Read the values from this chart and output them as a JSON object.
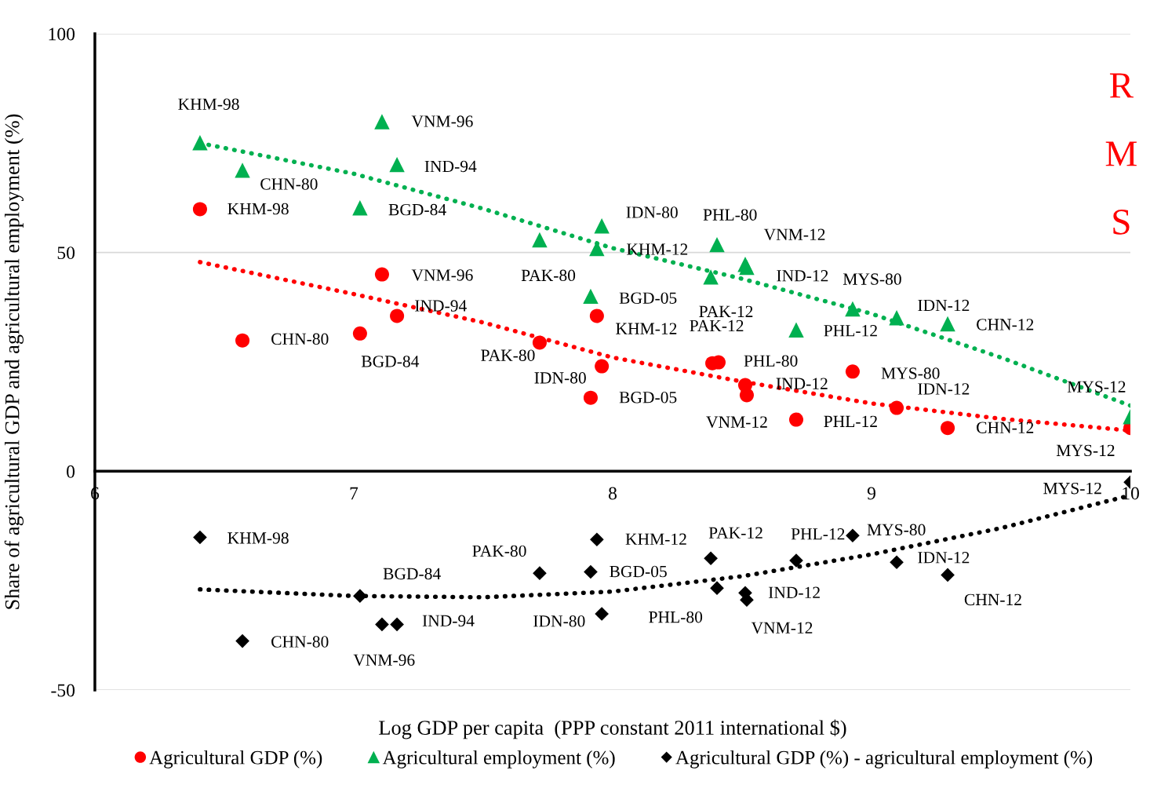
{
  "chart_data": {
    "type": "scatter",
    "xlabel": "Log GDP per capita  (PPP constant 2011 international $)",
    "ylabel": "Share of agricultural GDP and agricultural employment (%)",
    "xlim": [
      6,
      10
    ],
    "xticks": [
      6,
      7,
      8,
      9,
      10
    ],
    "ylim": [
      -50,
      100
    ],
    "yticks": [
      -50,
      0,
      50,
      100
    ],
    "grid": "y",
    "legend": "bottom",
    "series": [
      {
        "name": "Agricultural GDP (%)",
        "marker": "circle",
        "color": "#ff0000",
        "x": [
          6.406,
          6.57,
          7.109,
          7.167,
          7.024,
          7.718,
          7.958,
          7.939,
          7.915,
          8.409,
          8.385,
          8.518,
          8.512,
          8.927,
          9.097,
          9.294,
          8.709,
          10.0
        ],
        "values": [
          59.9,
          29.9,
          45.0,
          35.5,
          31.5,
          29.4,
          24.0,
          35.5,
          16.8,
          24.9,
          24.7,
          17.4,
          19.7,
          22.8,
          14.5,
          9.9,
          11.8,
          9.9
        ]
      },
      {
        "name": "Agricultural employment (%)",
        "marker": "triangle",
        "color": "#00b050",
        "x": [
          6.406,
          6.57,
          7.109,
          7.167,
          7.024,
          7.718,
          7.958,
          7.939,
          7.915,
          8.403,
          8.512,
          8.518,
          8.379,
          8.927,
          9.097,
          9.294,
          8.709,
          10.0
        ],
        "values": [
          75.1,
          68.8,
          79.9,
          70.1,
          60.2,
          52.9,
          56.1,
          50.9,
          40.0,
          51.8,
          47.3,
          46.6,
          44.4,
          37.1,
          35.1,
          33.7,
          32.3,
          12.5
        ]
      },
      {
        "name": "Agricultural GDP (%) - agricultural employment (%)",
        "marker": "diamond",
        "color": "#000000",
        "x": [
          6.406,
          6.57,
          7.109,
          7.167,
          7.024,
          7.718,
          7.958,
          7.939,
          7.915,
          8.403,
          8.379,
          8.518,
          8.512,
          8.927,
          9.097,
          9.294,
          8.709,
          10.0
        ],
        "values": [
          -15.1,
          -38.8,
          -35.0,
          -35.0,
          -28.5,
          -23.3,
          -32.6,
          -15.6,
          -23.0,
          -26.7,
          -19.9,
          -29.4,
          -27.8,
          -14.7,
          -20.8,
          -23.7,
          -20.4,
          -2.5
        ]
      },
      {
        "type": "line",
        "line_style": "dotted",
        "marker": "none",
        "color": "#00b050",
        "x": [
          6.406,
          7,
          7.5,
          8,
          8.5,
          9,
          9.5,
          10
        ],
        "values": [
          75,
          68,
          60,
          51,
          44,
          36,
          26,
          15
        ]
      },
      {
        "type": "line",
        "line_style": "dotted",
        "marker": "none",
        "color": "#ff0000",
        "x": [
          6.406,
          7,
          7.5,
          8,
          8.5,
          9,
          9.5,
          10
        ],
        "values": [
          47.8,
          40.5,
          34,
          26,
          20.5,
          15.5,
          12,
          9.3
        ]
      },
      {
        "type": "line",
        "line_style": "dotted",
        "marker": "none",
        "color": "#000000",
        "x": [
          6.406,
          7,
          7.5,
          8,
          8.5,
          9,
          9.5,
          10
        ],
        "values": [
          -27,
          -28.5,
          -28.8,
          -27.5,
          -24,
          -19,
          -13,
          -5.5
        ]
      }
    ],
    "annotations": [
      {
        "text": "KHM-98",
        "x": 6.406,
        "y": 75.1
      },
      {
        "text": "CHN-80",
        "x": 6.57,
        "y": 68.8
      },
      {
        "text": "VNM-96",
        "x": 7.109,
        "y": 79.9
      },
      {
        "text": "IND-94",
        "x": 7.167,
        "y": 70.1
      },
      {
        "text": "BGD-84",
        "x": 7.024,
        "y": 60.2
      },
      {
        "text": "PAK-80",
        "x": 7.718,
        "y": 52.9
      },
      {
        "text": "IDN-80",
        "x": 7.958,
        "y": 56.1
      },
      {
        "text": "KHM-12",
        "x": 7.939,
        "y": 50.9
      },
      {
        "text": "BGD-05",
        "x": 7.915,
        "y": 40.0
      },
      {
        "text": "PHL-80",
        "x": 8.403,
        "y": 51.8
      },
      {
        "text": "VNM-12",
        "x": 8.512,
        "y": 47.3
      },
      {
        "text": "IND-12",
        "x": 8.518,
        "y": 46.6
      },
      {
        "text": "PAK-12",
        "x": 8.379,
        "y": 44.4
      },
      {
        "text": "MYS-80",
        "x": 8.927,
        "y": 37.1
      },
      {
        "text": "IDN-12",
        "x": 9.097,
        "y": 35.1
      },
      {
        "text": "CHN-12",
        "x": 9.294,
        "y": 33.7
      },
      {
        "text": "PHL-12",
        "x": 8.709,
        "y": 32.3
      },
      {
        "text": "MYS-12",
        "x": 10.0,
        "y": 12.5
      },
      {
        "text": "KHM-98",
        "x": 6.406,
        "y": 59.9
      },
      {
        "text": "CHN-80",
        "x": 6.57,
        "y": 29.9
      },
      {
        "text": "VNM-96",
        "x": 7.109,
        "y": 45.0
      },
      {
        "text": "IND-94",
        "x": 7.167,
        "y": 35.5
      },
      {
        "text": "BGD-84",
        "x": 7.024,
        "y": 31.5
      },
      {
        "text": "PAK-80",
        "x": 7.718,
        "y": 29.4
      },
      {
        "text": "IDN-80",
        "x": 7.958,
        "y": 24.0
      },
      {
        "text": "KHM-12",
        "x": 7.939,
        "y": 35.5
      },
      {
        "text": "BGD-05",
        "x": 7.915,
        "y": 16.8
      },
      {
        "text": "PHL-80",
        "x": 8.409,
        "y": 24.9
      },
      {
        "text": "PAK-12",
        "x": 8.385,
        "y": 24.7
      },
      {
        "text": "VNM-12",
        "x": 8.518,
        "y": 17.4
      },
      {
        "text": "IND-12",
        "x": 8.512,
        "y": 19.7
      },
      {
        "text": "MYS-80",
        "x": 8.927,
        "y": 22.8
      },
      {
        "text": "IDN-12",
        "x": 9.097,
        "y": 14.5
      },
      {
        "text": "CHN-12",
        "x": 9.294,
        "y": 9.9
      },
      {
        "text": "PHL-12",
        "x": 8.709,
        "y": 11.8
      },
      {
        "text": "MYS-12",
        "x": 10.0,
        "y": 9.9
      },
      {
        "text": "KHM-98",
        "x": 6.406,
        "y": -15.1
      },
      {
        "text": "CHN-80",
        "x": 6.57,
        "y": -38.8
      },
      {
        "text": "VNM-96",
        "x": 7.109,
        "y": -35.0
      },
      {
        "text": "IND-94",
        "x": 7.167,
        "y": -35.0
      },
      {
        "text": "BGD-84",
        "x": 7.024,
        "y": -28.5
      },
      {
        "text": "PAK-80",
        "x": 7.718,
        "y": -23.3
      },
      {
        "text": "IDN-80",
        "x": 7.958,
        "y": -32.6
      },
      {
        "text": "KHM-12",
        "x": 7.939,
        "y": -15.6
      },
      {
        "text": "BGD-05",
        "x": 7.915,
        "y": -23.0
      },
      {
        "text": "PHL-80",
        "x": 8.403,
        "y": -26.7
      },
      {
        "text": "PAK-12",
        "x": 8.379,
        "y": -19.9
      },
      {
        "text": "VNM-12",
        "x": 8.518,
        "y": -29.4
      },
      {
        "text": "IND-12",
        "x": 8.512,
        "y": -27.8
      },
      {
        "text": "MYS-80",
        "x": 8.927,
        "y": -14.7
      },
      {
        "text": "IDN-12",
        "x": 9.097,
        "y": -20.8
      },
      {
        "text": "CHN-12",
        "x": 9.294,
        "y": -23.7
      },
      {
        "text": "PHL-12",
        "x": 8.709,
        "y": -20.4
      },
      {
        "text": "MYS-12",
        "x": 10.0,
        "y": -2.5
      },
      "R",
      "M",
      "S"
    ]
  }
}
